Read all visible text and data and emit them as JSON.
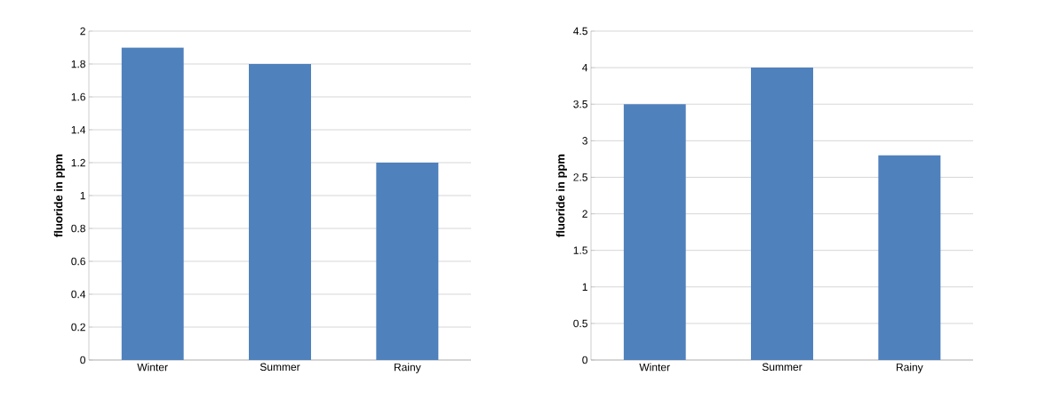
{
  "chart_data": [
    {
      "type": "bar",
      "ylabel": "fluoride in ppm",
      "categories": [
        "Winter",
        "Summer",
        "Rainy"
      ],
      "values": [
        1.9,
        1.8,
        1.2
      ],
      "color": "#4f81bd",
      "ylim": [
        0,
        2
      ],
      "yticks": [
        0,
        0.2,
        0.4,
        0.6,
        0.8,
        1,
        1.2,
        1.4,
        1.6,
        1.8,
        2
      ],
      "grid": "y"
    },
    {
      "type": "bar",
      "ylabel": "fluoride in ppm",
      "categories": [
        "Winter",
        "Summer",
        "Rainy"
      ],
      "values": [
        3.5,
        4,
        2.8
      ],
      "color": "#4f81bd",
      "ylim": [
        0,
        4.5
      ],
      "yticks": [
        0,
        0.5,
        1,
        1.5,
        2,
        2.5,
        3,
        3.5,
        4,
        4.5
      ],
      "grid": "y"
    }
  ]
}
